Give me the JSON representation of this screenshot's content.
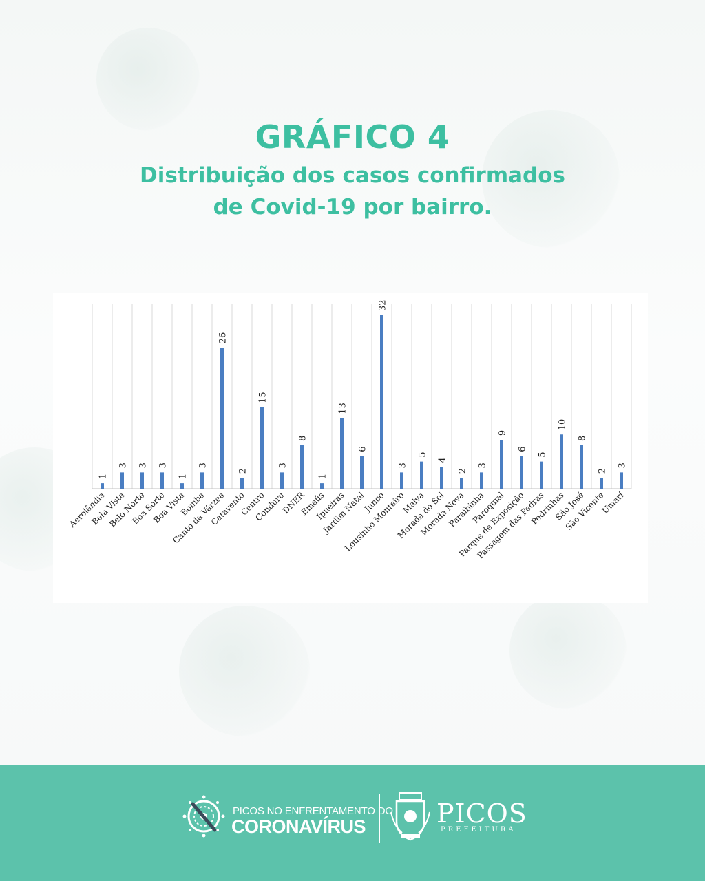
{
  "header": {
    "title": "GRÁFICO 4",
    "subtitle_line1": "Distribuição dos casos confirmados",
    "subtitle_line2": "de Covid-19 por bairro."
  },
  "chart_data": {
    "type": "bar",
    "categories": [
      "Aerolândia",
      "Bela Vista",
      "Belo Norte",
      "Boa Sorte",
      "Boa Vista",
      "Bomba",
      "Canto da Várzea",
      "Catavento",
      "Centro",
      "Conduru",
      "DNER",
      "Emaús",
      "Ipueiras",
      "Jardim Natal",
      "Junco",
      "Lousinho Monteiro",
      "Malva",
      "Morada do Sol",
      "Morada Nova",
      "Paraibinha",
      "Paroquial",
      "Parque de Exposição",
      "Passagem das Pedras",
      "Pedrinhas",
      "São José",
      "São Vicente",
      "Umarí"
    ],
    "values": [
      1,
      3,
      3,
      3,
      1,
      3,
      26,
      2,
      15,
      3,
      8,
      1,
      13,
      6,
      32,
      3,
      5,
      4,
      2,
      3,
      9,
      6,
      5,
      10,
      8,
      2,
      3
    ],
    "ylim": [
      0,
      32
    ],
    "grid": "vertical",
    "data_labels": true,
    "bar_color": "#4a7ec2"
  },
  "footer": {
    "campaign_line1": "PICOS NO ENFRENTAMENTO DO",
    "campaign_line2": "CORONAVÍRUS",
    "city_name": "PICOS",
    "city_sub": "PREFEITURA",
    "background_color": "#5cc2ab",
    "campaign_icon": "crossed-virus-icon",
    "crest_icon": "city-crest-icon"
  }
}
